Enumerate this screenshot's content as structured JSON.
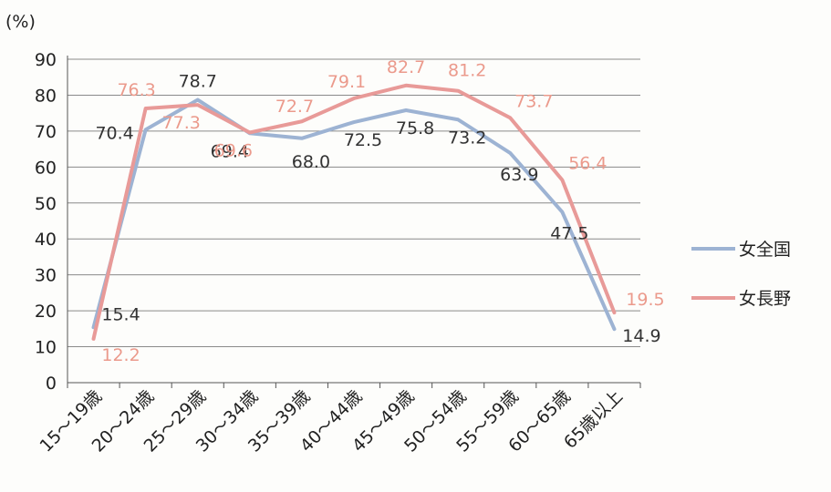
{
  "chart_data": {
    "type": "line",
    "y_unit_label": "(%)",
    "categories": [
      "15～19歳",
      "20～24歳",
      "25～29歳",
      "30～34歳",
      "35～39歳",
      "40～44歳",
      "45～49歳",
      "50～54歳",
      "55～59歳",
      "60～65歳",
      "65歳以上"
    ],
    "yticks": [
      0,
      10,
      20,
      30,
      40,
      50,
      60,
      70,
      80,
      90
    ],
    "ylim": [
      0,
      90
    ],
    "grid": "horizontal",
    "legend_position": "right",
    "series": [
      {
        "name": "女全国",
        "color": "#9db3d3",
        "label_color": "#333333",
        "values": [
          15.4,
          70.4,
          78.7,
          69.4,
          68.0,
          72.5,
          75.8,
          73.2,
          63.9,
          47.5,
          14.9
        ]
      },
      {
        "name": "女長野",
        "color": "#e89a98",
        "label_color": "#eb9a8c",
        "values": [
          12.2,
          76.3,
          77.3,
          69.6,
          72.7,
          79.1,
          82.7,
          81.2,
          73.7,
          56.4,
          19.5
        ]
      }
    ]
  }
}
